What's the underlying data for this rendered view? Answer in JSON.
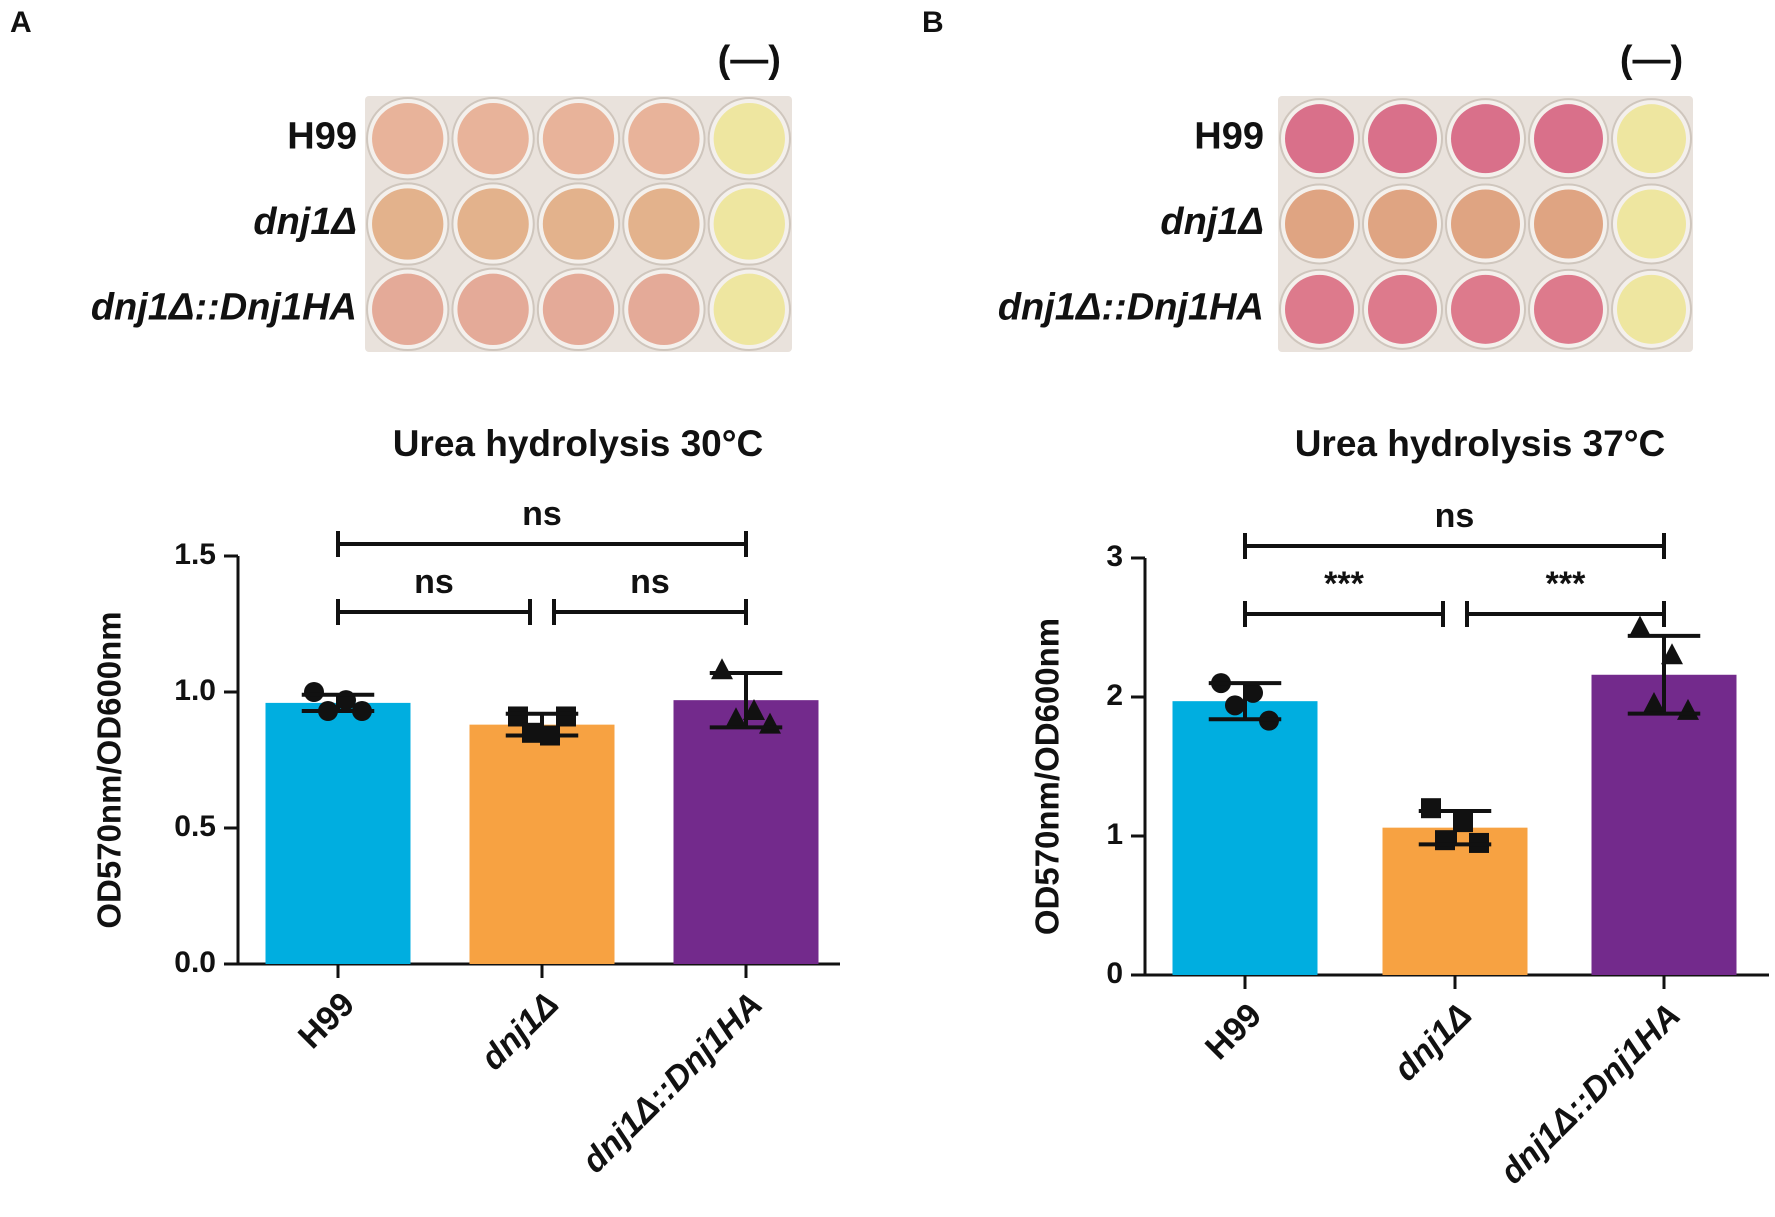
{
  "panels": [
    {
      "letter": "A",
      "plate": {
        "rows": [
          "H99",
          "dnj1Δ",
          "dnj1Δ::Dnj1HA"
        ],
        "control": "(—)"
      }
    },
    {
      "letter": "B",
      "plate": {
        "rows": [
          "H99",
          "dnj1Δ",
          "dnj1Δ::Dnj1HA"
        ],
        "control": "(—)"
      }
    }
  ],
  "chart_data": [
    {
      "type": "bar",
      "title": "Urea hydrolysis 30°C",
      "y_label": "OD570nm/OD600nm",
      "categories": [
        "H99",
        "dnj1Δ",
        "dnj1Δ::Dnj1HA"
      ],
      "values": [
        0.96,
        0.88,
        0.97
      ],
      "errors": [
        0.03,
        0.04,
        0.1
      ],
      "points": [
        [
          1.0,
          0.97,
          0.93,
          0.93
        ],
        [
          0.91,
          0.84,
          0.85,
          0.91
        ],
        [
          1.08,
          0.93,
          0.9,
          0.88
        ]
      ],
      "markers": [
        "circle",
        "square",
        "triangle"
      ],
      "colors": [
        "#00aee0",
        "#f7a242",
        "#732a8c"
      ],
      "ylim": [
        0,
        1.5
      ],
      "yticks": [
        {
          "value": 0,
          "label": "0.0"
        },
        0.5,
        {
          "value": 1,
          "label": "1.0"
        },
        1.5
      ],
      "annotations": [
        {
          "text": "ns",
          "between": [
            "H99",
            "dnj1Δ"
          ]
        },
        {
          "text": "ns",
          "between": [
            "dnj1Δ",
            "dnj1Δ::Dnj1HA"
          ]
        },
        {
          "text": "ns",
          "between": [
            "H99",
            "dnj1Δ::Dnj1HA"
          ]
        }
      ]
    },
    {
      "type": "bar",
      "title": "Urea hydrolysis 37°C",
      "y_label": "OD570nm/OD600nm",
      "categories": [
        "H99",
        "dnj1Δ",
        "dnj1Δ::Dnj1HA"
      ],
      "values": [
        1.97,
        1.06,
        2.16
      ],
      "errors": [
        0.13,
        0.12,
        0.28
      ],
      "points": [
        [
          2.1,
          2.03,
          1.94,
          1.83
        ],
        [
          1.2,
          1.1,
          0.97,
          0.95
        ],
        [
          2.5,
          2.3,
          1.95,
          1.9
        ]
      ],
      "markers": [
        "circle",
        "square",
        "triangle"
      ],
      "colors": [
        "#00aee0",
        "#f7a242",
        "#732a8c"
      ],
      "ylim": [
        0,
        3
      ],
      "yticks": [
        0,
        1,
        2,
        3
      ],
      "annotations": [
        {
          "text": "***",
          "between": [
            "H99",
            "dnj1Δ"
          ]
        },
        {
          "text": "***",
          "between": [
            "dnj1Δ",
            "dnj1Δ::Dnj1HA"
          ]
        },
        {
          "text": "ns",
          "between": [
            "H99",
            "dnj1Δ::Dnj1HA"
          ]
        }
      ]
    }
  ]
}
